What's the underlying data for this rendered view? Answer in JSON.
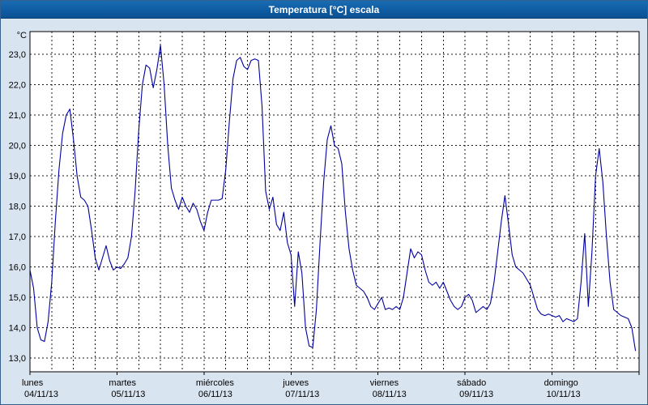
{
  "window": {
    "title": "Temperatura [°C] escala"
  },
  "colors": {
    "titlebar": "#0f5ca3",
    "titlebar_text": "#ffffff",
    "outer_bg": "#d9e4f1",
    "plot_bg": "#ffffff",
    "grid": "#1a1a1a",
    "plot_border": "#000000",
    "line": "#0000a0"
  },
  "chart_data": {
    "type": "line",
    "title": "Temperatura [°C] escala",
    "ylabel": "°C",
    "xlabel": "",
    "grid": true,
    "legend": "none",
    "ylim": [
      12.55,
      23.75
    ],
    "hours_per_day": 24,
    "y_ticks": [
      {
        "value": 23,
        "label": "23,0"
      },
      {
        "value": 22,
        "label": "22,0"
      },
      {
        "value": 21,
        "label": "21,0"
      },
      {
        "value": 20,
        "label": "20,0"
      },
      {
        "value": 19,
        "label": "19,0"
      },
      {
        "value": 18,
        "label": "18,0"
      },
      {
        "value": 17,
        "label": "17,0"
      },
      {
        "value": 16,
        "label": "16,0"
      },
      {
        "value": 15,
        "label": "15,0"
      },
      {
        "value": 14,
        "label": "14,0"
      },
      {
        "value": 13,
        "label": "13,0"
      }
    ],
    "x_days": [
      {
        "name": "lunes",
        "date": "04/11/13"
      },
      {
        "name": "martes",
        "date": "05/11/13"
      },
      {
        "name": "miércoles",
        "date": "06/11/13"
      },
      {
        "name": "jueves",
        "date": "07/11/13"
      },
      {
        "name": "viernes",
        "date": "08/11/13"
      },
      {
        "name": "sábado",
        "date": "09/11/13"
      },
      {
        "name": "domingo",
        "date": "10/11/13"
      }
    ],
    "series": [
      {
        "name": "Temperatura",
        "color": "#0000a0",
        "values": [
          15.9,
          15.3,
          14.0,
          13.6,
          13.55,
          14.2,
          15.5,
          17.5,
          19.2,
          20.4,
          21.0,
          21.2,
          20.2,
          19.0,
          18.3,
          18.2,
          18.0,
          17.2,
          16.3,
          15.9,
          16.3,
          16.7,
          16.2,
          15.9,
          16.0,
          15.95,
          16.1,
          16.3,
          17.0,
          18.5,
          20.5,
          22.0,
          22.65,
          22.55,
          21.9,
          22.5,
          23.3,
          22.0,
          20.0,
          18.6,
          18.2,
          17.9,
          18.3,
          18.0,
          17.8,
          18.1,
          17.9,
          17.5,
          17.2,
          17.8,
          18.2,
          18.2,
          18.2,
          18.25,
          19.2,
          20.8,
          22.2,
          22.8,
          22.9,
          22.6,
          22.5,
          22.8,
          22.85,
          22.8,
          21.3,
          18.5,
          17.9,
          18.3,
          17.4,
          17.2,
          17.8,
          16.8,
          16.4,
          14.7,
          16.5,
          15.8,
          14.0,
          13.4,
          13.35,
          14.6,
          16.8,
          18.8,
          20.2,
          20.65,
          20.0,
          19.9,
          19.4,
          17.8,
          16.6,
          15.9,
          15.4,
          15.3,
          15.2,
          15.0,
          14.7,
          14.6,
          14.8,
          15.0,
          14.6,
          14.65,
          14.6,
          14.7,
          14.6,
          15.0,
          15.8,
          16.6,
          16.3,
          16.5,
          16.4,
          15.9,
          15.5,
          15.4,
          15.5,
          15.3,
          15.5,
          15.2,
          14.9,
          14.7,
          14.6,
          14.7,
          15.0,
          15.1,
          14.9,
          14.5,
          14.6,
          14.7,
          14.6,
          14.8,
          15.5,
          16.5,
          17.5,
          18.35,
          17.4,
          16.4,
          16.0,
          15.9,
          15.8,
          15.6,
          15.4,
          15.0,
          14.6,
          14.45,
          14.4,
          14.45,
          14.4,
          14.35,
          14.4,
          14.2,
          14.3,
          14.25,
          14.2,
          14.3,
          15.5,
          17.1,
          14.7,
          16.5,
          19.0,
          19.9,
          18.8,
          17.0,
          15.5,
          14.6,
          14.5,
          14.4,
          14.35,
          14.3,
          14.0,
          13.25
        ]
      }
    ]
  }
}
